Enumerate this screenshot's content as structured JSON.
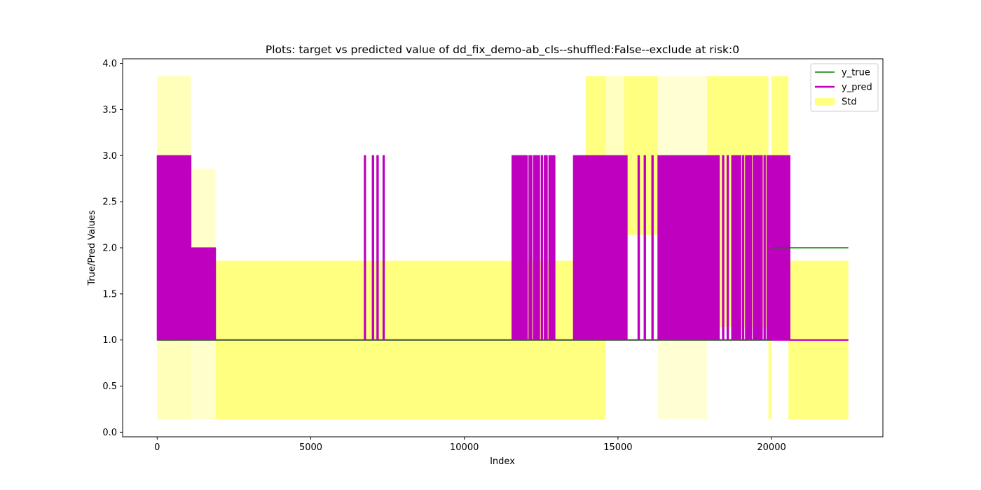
{
  "chart_data": {
    "type": "line",
    "title": "Plots: target vs predicted value of dd_fix_demo-ab_cls--shuffled:False--exclude at risk:0",
    "xlabel": "Index",
    "ylabel": "True/Pred Values",
    "xlim": [
      -1125,
      23625
    ],
    "ylim": [
      -0.05,
      4.05
    ],
    "xticks": [
      0,
      5000,
      10000,
      15000,
      20000
    ],
    "yticks": [
      0.0,
      0.5,
      1.0,
      1.5,
      2.0,
      2.5,
      3.0,
      3.5,
      4.0
    ],
    "grid": false,
    "legend_position": "top-right",
    "legend": [
      {
        "label": "y_true",
        "color": "#008000",
        "kind": "line"
      },
      {
        "label": "y_pred",
        "color": "#bf00bf",
        "kind": "line"
      },
      {
        "label": "Std",
        "color": "#ffff80",
        "kind": "patch"
      }
    ],
    "series": [
      {
        "name": "y_true",
        "color": "#008000",
        "segments": [
          {
            "x": [
              0,
              20000
            ],
            "y": [
              1,
              1
            ]
          },
          {
            "x": [
              20000,
              22500
            ],
            "y": [
              2,
              2
            ]
          }
        ]
      },
      {
        "name": "y_pred",
        "color": "#bf00bf",
        "low": 1,
        "blocks": [
          {
            "x0": 0,
            "x1": 1100,
            "high": 3
          },
          {
            "x0": 1100,
            "x1": 1900,
            "high": 2
          },
          {
            "x0": 6740,
            "x1": 6780,
            "high": 3
          },
          {
            "x0": 7000,
            "x1": 7050,
            "high": 3
          },
          {
            "x0": 7150,
            "x1": 7200,
            "high": 3
          },
          {
            "x0": 7350,
            "x1": 7380,
            "high": 3
          },
          {
            "x0": 11550,
            "x1": 12050,
            "high": 3
          },
          {
            "x0": 12100,
            "x1": 12200,
            "high": 3
          },
          {
            "x0": 12250,
            "x1": 12450,
            "high": 3
          },
          {
            "x0": 12500,
            "x1": 12550,
            "high": 3
          },
          {
            "x0": 12600,
            "x1": 12700,
            "high": 3
          },
          {
            "x0": 12750,
            "x1": 12950,
            "high": 3
          },
          {
            "x0": 13550,
            "x1": 15300,
            "high": 3
          },
          {
            "x0": 15650,
            "x1": 15700,
            "high": 3
          },
          {
            "x0": 15850,
            "x1": 15900,
            "high": 3
          },
          {
            "x0": 16100,
            "x1": 16150,
            "high": 3
          },
          {
            "x0": 16300,
            "x1": 18300,
            "high": 3
          },
          {
            "x0": 18400,
            "x1": 18450,
            "high": 3
          },
          {
            "x0": 18550,
            "x1": 18600,
            "high": 3
          },
          {
            "x0": 18700,
            "x1": 19000,
            "high": 3
          },
          {
            "x0": 19050,
            "x1": 19100,
            "high": 3
          },
          {
            "x0": 19150,
            "x1": 19350,
            "high": 3
          },
          {
            "x0": 19400,
            "x1": 19700,
            "high": 3
          },
          {
            "x0": 19750,
            "x1": 19800,
            "high": 3
          },
          {
            "x0": 19850,
            "x1": 20600,
            "high": 3
          }
        ],
        "tail": {
          "x": [
            20600,
            22500
          ],
          "y": 1
        }
      },
      {
        "name": "Std",
        "color": "#ffff80",
        "bands": [
          {
            "x0": 0,
            "x1": 1100,
            "low": 0.14,
            "high": 3.86,
            "alpha": 0.55
          },
          {
            "x0": 1100,
            "x1": 1900,
            "low": 0.14,
            "high": 2.86,
            "alpha": 0.4
          },
          {
            "x0": 1900,
            "x1": 13950,
            "low": 0.14,
            "high": 1.86,
            "alpha": 1
          },
          {
            "x0": 11550,
            "x1": 12950,
            "low": 0.14,
            "high": 1.86,
            "alpha": 1
          },
          {
            "x0": 13950,
            "x1": 14600,
            "low": 0.14,
            "high": 3.86,
            "alpha": 1
          },
          {
            "x0": 14600,
            "x1": 15200,
            "low": 2.14,
            "high": 3.86,
            "alpha": 0.5
          },
          {
            "x0": 15200,
            "x1": 16300,
            "low": 2.14,
            "high": 3.86,
            "alpha": 1
          },
          {
            "x0": 16300,
            "x1": 17900,
            "low": 0.14,
            "high": 3.86,
            "alpha": 0.35
          },
          {
            "x0": 17900,
            "x1": 19900,
            "low": 1.14,
            "high": 3.86,
            "alpha": 1
          },
          {
            "x0": 19900,
            "x1": 20000,
            "low": 0.14,
            "high": 1.86,
            "alpha": 1
          },
          {
            "x0": 20000,
            "x1": 20550,
            "low": 2.14,
            "high": 3.86,
            "alpha": 1
          },
          {
            "x0": 20550,
            "x1": 22500,
            "low": 0.14,
            "high": 1.86,
            "alpha": 1
          }
        ]
      }
    ]
  }
}
